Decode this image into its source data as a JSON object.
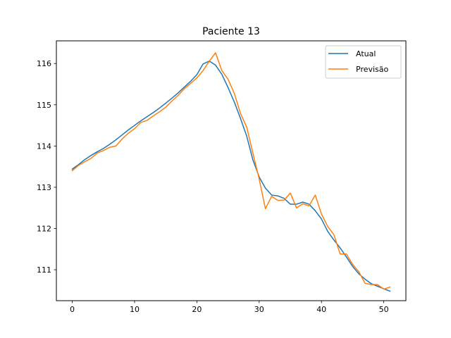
{
  "chart_data": {
    "type": "line",
    "title": "Paciente 13",
    "xlabel": "",
    "ylabel": "",
    "xlim": [
      -2.55,
      53.55
    ],
    "ylim": [
      110.25,
      116.55
    ],
    "x_ticks": [
      0,
      10,
      20,
      30,
      40,
      50
    ],
    "y_ticks": [
      111,
      112,
      113,
      114,
      115,
      116
    ],
    "grid": false,
    "legend_position": "top-right",
    "series": [
      {
        "name": "Atual",
        "color": "#1f77b4",
        "x": [
          0,
          1,
          2,
          3,
          4,
          5,
          6,
          7,
          8,
          9,
          10,
          11,
          12,
          13,
          14,
          15,
          16,
          17,
          18,
          19,
          20,
          21,
          22,
          23,
          24,
          25,
          26,
          27,
          28,
          29,
          30,
          31,
          32,
          33,
          34,
          35,
          36,
          37,
          38,
          39,
          40,
          41,
          42,
          43,
          44,
          45,
          46,
          47,
          48,
          49,
          50,
          51
        ],
        "values": [
          113.44,
          113.55,
          113.67,
          113.77,
          113.86,
          113.94,
          114.04,
          114.15,
          114.27,
          114.39,
          114.5,
          114.61,
          114.71,
          114.81,
          114.92,
          115.04,
          115.16,
          115.29,
          115.43,
          115.57,
          115.73,
          115.99,
          116.06,
          115.96,
          115.74,
          115.42,
          115.07,
          114.67,
          114.24,
          113.66,
          113.25,
          112.98,
          112.81,
          112.79,
          112.73,
          112.59,
          112.59,
          112.64,
          112.59,
          112.43,
          112.23,
          111.93,
          111.72,
          111.53,
          111.31,
          111.08,
          110.9,
          110.77,
          110.66,
          110.6,
          110.54,
          110.48
        ]
      },
      {
        "name": "Previsão",
        "color": "#ff7f0e",
        "x": [
          0,
          1,
          2,
          3,
          4,
          5,
          6,
          7,
          8,
          9,
          10,
          11,
          12,
          13,
          14,
          15,
          16,
          17,
          18,
          19,
          20,
          21,
          22,
          23,
          24,
          25,
          26,
          27,
          28,
          29,
          30,
          31,
          32,
          33,
          34,
          35,
          36,
          37,
          38,
          39,
          40,
          41,
          42,
          43,
          44,
          45,
          46,
          47,
          48,
          49,
          50,
          51
        ],
        "values": [
          113.4,
          113.53,
          113.62,
          113.7,
          113.83,
          113.89,
          113.97,
          114.0,
          114.17,
          114.31,
          114.42,
          114.57,
          114.62,
          114.73,
          114.83,
          114.94,
          115.09,
          115.23,
          115.39,
          115.52,
          115.65,
          115.83,
          116.06,
          116.26,
          115.83,
          115.62,
          115.28,
          114.79,
          114.46,
          113.82,
          113.2,
          112.48,
          112.78,
          112.68,
          112.69,
          112.86,
          112.5,
          112.6,
          112.55,
          112.81,
          112.35,
          112.05,
          111.85,
          111.38,
          111.38,
          111.13,
          110.95,
          110.67,
          110.64,
          110.64,
          110.53,
          110.58
        ]
      }
    ]
  }
}
